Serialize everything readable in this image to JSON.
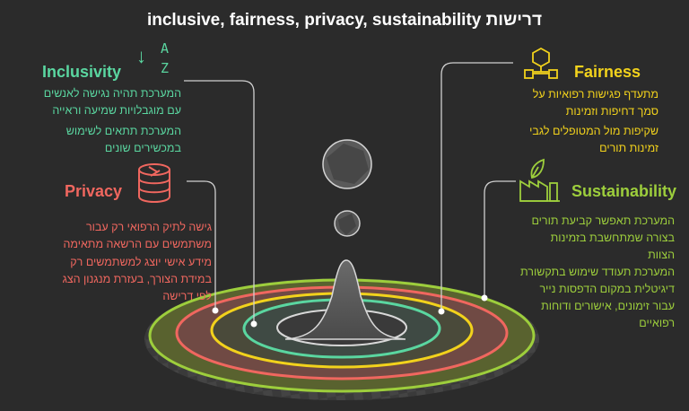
{
  "title": "inclusive, fairness, privacy, sustainability דרישות",
  "sections": {
    "inclusivity": {
      "heading": "Inclusivity",
      "line1": "המערכת תהיה נגישה לאנשים\nעם מוגבלויות שמיעה וראייה",
      "line2": "המערכת תתאים לשימוש\nבמכשירים שונים",
      "icon": "sort-a-z-icon",
      "color": "#5ad6a0"
    },
    "privacy": {
      "heading": "Privacy",
      "line1": "גישה לתיק הרפואי רק  עבור\nמשתמשים עם הרשאה מתאימה",
      "line2": "מידע אישי יוצג למשתמשים רק\nבמידת הצורך, בעזרת מנגנון הצג\nלפי דרישה",
      "icon": "database-icon",
      "color": "#f0675f"
    },
    "fairness": {
      "heading": "Fairness",
      "line1": "מתעדף פגישות רפואיות על\nסמך דחיפות וזמינות",
      "line2": "שקיפות מול המטופלים לגבי\nזמינות תורים",
      "icon": "network-cubes-icon",
      "color": "#f2d21c"
    },
    "sustainability": {
      "heading": "Sustainability",
      "line1": "המערכת תאפשר קביעת תורים\nבצורה  שמתחשבת בזמינות\nהצוות",
      "line2": "המערכת תעודד שימוש בתקשורת\nדיגיטלית במקום הדפסות נייר\nעבור זימונים, אישורים ודוחות\nרפואיים",
      "icon": "eco-factory-icon",
      "color": "#9dce3c"
    }
  },
  "icons": {
    "az_a": "A",
    "az_z": "Z",
    "az_arrow": "↓"
  },
  "colors": {
    "background": "#2b2b2b",
    "ring_outer": "#9dce3c",
    "ring_red": "#f0675f",
    "ring_yellow": "#f2d21c",
    "ring_green": "#5ad6a0",
    "cone": "#5c5c5c"
  }
}
